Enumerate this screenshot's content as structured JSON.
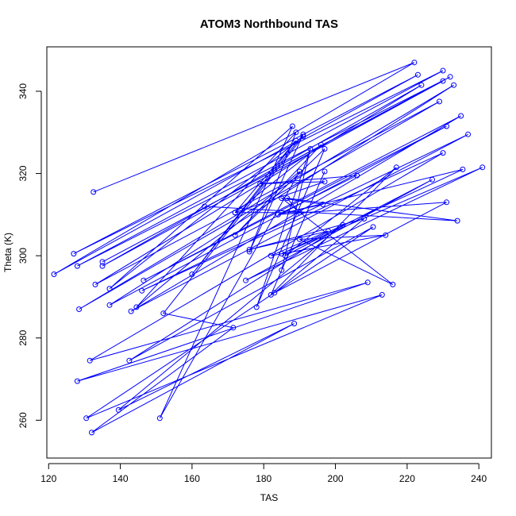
{
  "chart_data": {
    "type": "line",
    "title": "ATOM3 Northbound TAS",
    "xlabel": "TAS",
    "ylabel": "Theta (K)",
    "xlim": [
      119.5,
      243.5
    ],
    "ylim": [
      250.8,
      350.8
    ],
    "xticks": [
      120,
      140,
      160,
      180,
      200,
      220,
      240
    ],
    "yticks": [
      260,
      280,
      300,
      320,
      340
    ],
    "grid": false,
    "legend": "none",
    "series_color": "#0000ff",
    "marker": "open-circle",
    "series": [
      {
        "points": [
          [
            132.5,
            315.5
          ],
          [
            222,
            347
          ],
          [
            121.5,
            295.5
          ],
          [
            223,
            344
          ],
          [
            127,
            300.5
          ],
          [
            230,
            345
          ],
          [
            128,
            297.5
          ],
          [
            232,
            343.5
          ],
          [
            135,
            298.5
          ],
          [
            230,
            342.5
          ],
          [
            135,
            297.5
          ],
          [
            224,
            341.5
          ],
          [
            133,
            293
          ],
          [
            229,
            337.5
          ],
          [
            128.5,
            287
          ],
          [
            233,
            341.5
          ],
          [
            137,
            288
          ],
          [
            231,
            331.5
          ],
          [
            146.5,
            294
          ],
          [
            235,
            334
          ],
          [
            143,
            286.5
          ],
          [
            237,
            329.5
          ],
          [
            146,
            291.5
          ],
          [
            230,
            325
          ],
          [
            131.5,
            274.5
          ],
          [
            209,
            293.5
          ],
          [
            128,
            269.5
          ],
          [
            213,
            290.5
          ],
          [
            130.5,
            260.5
          ],
          [
            210.5,
            307
          ],
          [
            142.5,
            274.5
          ],
          [
            202,
            307.5
          ],
          [
            139.5,
            262.5
          ],
          [
            188.5,
            283.5
          ],
          [
            132,
            257
          ],
          [
            171.5,
            282.5
          ],
          [
            152,
            286
          ],
          [
            191,
            329
          ],
          [
            137,
            292
          ],
          [
            188,
            331.5
          ],
          [
            151,
            260.5
          ],
          [
            190,
            320.5
          ],
          [
            144.5,
            287.5
          ],
          [
            189,
            330
          ],
          [
            176,
            301
          ],
          [
            191,
            329.5
          ],
          [
            160,
            295.5
          ],
          [
            189,
            328
          ],
          [
            172,
            310.5
          ],
          [
            196,
            327
          ],
          [
            172,
            305
          ],
          [
            197,
            326
          ],
          [
            178,
            287.5
          ],
          [
            193,
            326
          ],
          [
            185,
            296.5
          ],
          [
            197,
            320.5
          ],
          [
            182,
            290.5
          ],
          [
            217,
            321.5
          ],
          [
            186,
            300
          ],
          [
            227,
            318.5
          ],
          [
            175,
            294
          ],
          [
            241,
            321.5
          ],
          [
            185,
            300.5
          ],
          [
            235.5,
            321
          ],
          [
            184,
            310
          ],
          [
            231,
            313
          ],
          [
            183,
            291
          ],
          [
            208,
            309
          ],
          [
            176,
            301.5
          ],
          [
            198,
            306
          ],
          [
            182,
            300
          ],
          [
            214,
            305
          ],
          [
            190,
            304
          ],
          [
            216,
            293
          ],
          [
            185,
            314
          ],
          [
            196.5,
            312.5
          ],
          [
            184,
            310
          ],
          [
            206,
            319.5
          ],
          [
            179,
            317.5
          ],
          [
            197,
            318
          ],
          [
            172,
            310.5
          ],
          [
            190,
            310.5
          ],
          [
            186.5,
            314
          ],
          [
            234,
            308.5
          ],
          [
            163.5,
            312
          ]
        ]
      }
    ]
  }
}
